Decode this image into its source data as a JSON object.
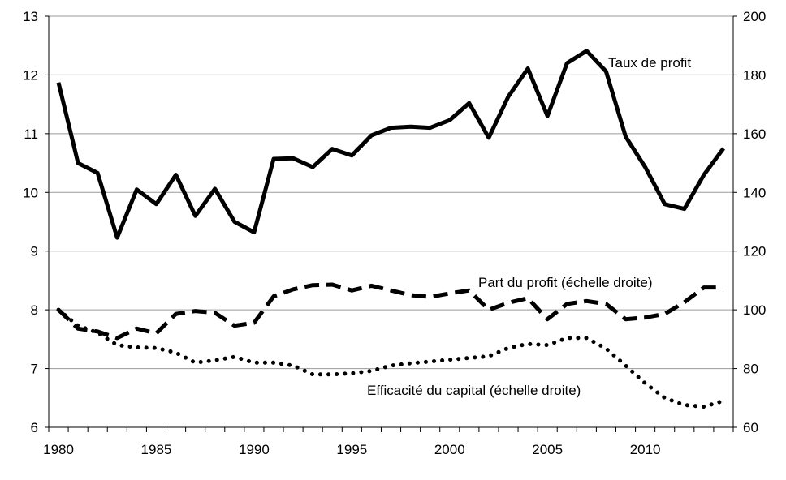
{
  "chart_data": {
    "type": "line",
    "x": [
      1980,
      1981,
      1982,
      1983,
      1984,
      1985,
      1986,
      1987,
      1988,
      1989,
      1990,
      1991,
      1992,
      1993,
      1994,
      1995,
      1996,
      1997,
      1998,
      1999,
      2000,
      2001,
      2002,
      2003,
      2004,
      2005,
      2006,
      2007,
      2008,
      2009,
      2010,
      2011,
      2012,
      2013,
      2014
    ],
    "xticks": [
      1980,
      1985,
      1990,
      1995,
      2000,
      2005,
      2010
    ],
    "xlim": [
      1979.5,
      2014.5
    ],
    "ylim_left": [
      6,
      13
    ],
    "yticks_left": [
      6,
      7,
      8,
      9,
      10,
      11,
      12,
      13
    ],
    "ylim_right": [
      60,
      200
    ],
    "yticks_right": [
      60,
      80,
      100,
      120,
      140,
      160,
      180,
      200
    ],
    "grid": "horizontal",
    "series": [
      {
        "name": "Taux de profit",
        "axis": "left",
        "style": "solid",
        "color": "#000000",
        "values": [
          11.87,
          10.5,
          10.33,
          9.23,
          10.05,
          9.8,
          10.3,
          9.6,
          10.06,
          9.5,
          9.32,
          10.57,
          10.58,
          10.43,
          10.74,
          10.63,
          10.97,
          11.1,
          11.12,
          11.1,
          11.23,
          11.52,
          10.93,
          11.63,
          12.11,
          11.3,
          12.2,
          12.41,
          12.06,
          10.95,
          10.43,
          9.8,
          9.72,
          10.3,
          10.75
        ]
      },
      {
        "name": "Part du profit (échelle droite)",
        "axis": "right",
        "style": "dashed",
        "color": "#000000",
        "values": [
          100,
          93.6,
          92.6,
          90.4,
          93.6,
          92,
          98.6,
          99.6,
          99,
          94.6,
          95.6,
          104.6,
          107,
          108.4,
          108.6,
          106.6,
          108.2,
          106.6,
          105,
          104.4,
          105.6,
          106.6,
          100,
          102.4,
          104,
          96.8,
          102,
          103,
          102,
          96.8,
          97.4,
          98.6,
          102.6,
          107.6,
          107.6
        ]
      },
      {
        "name": "Efficacité du capital (échelle droite)",
        "axis": "right",
        "style": "dotted",
        "color": "#000000",
        "values": [
          100,
          94.6,
          92.2,
          88,
          87.2,
          87,
          85.4,
          82,
          82.8,
          84,
          82,
          82,
          81,
          78,
          78,
          78.4,
          79.2,
          81,
          81.8,
          82.4,
          83,
          83.6,
          84.2,
          87,
          88.4,
          88,
          90.4,
          90.4,
          86.8,
          81,
          75,
          70,
          67.6,
          67,
          69
        ]
      }
    ],
    "annotations": [
      "Taux de profit",
      "Part du profit (échelle droite)",
      "Efficacité du capital (échelle droite)"
    ]
  }
}
